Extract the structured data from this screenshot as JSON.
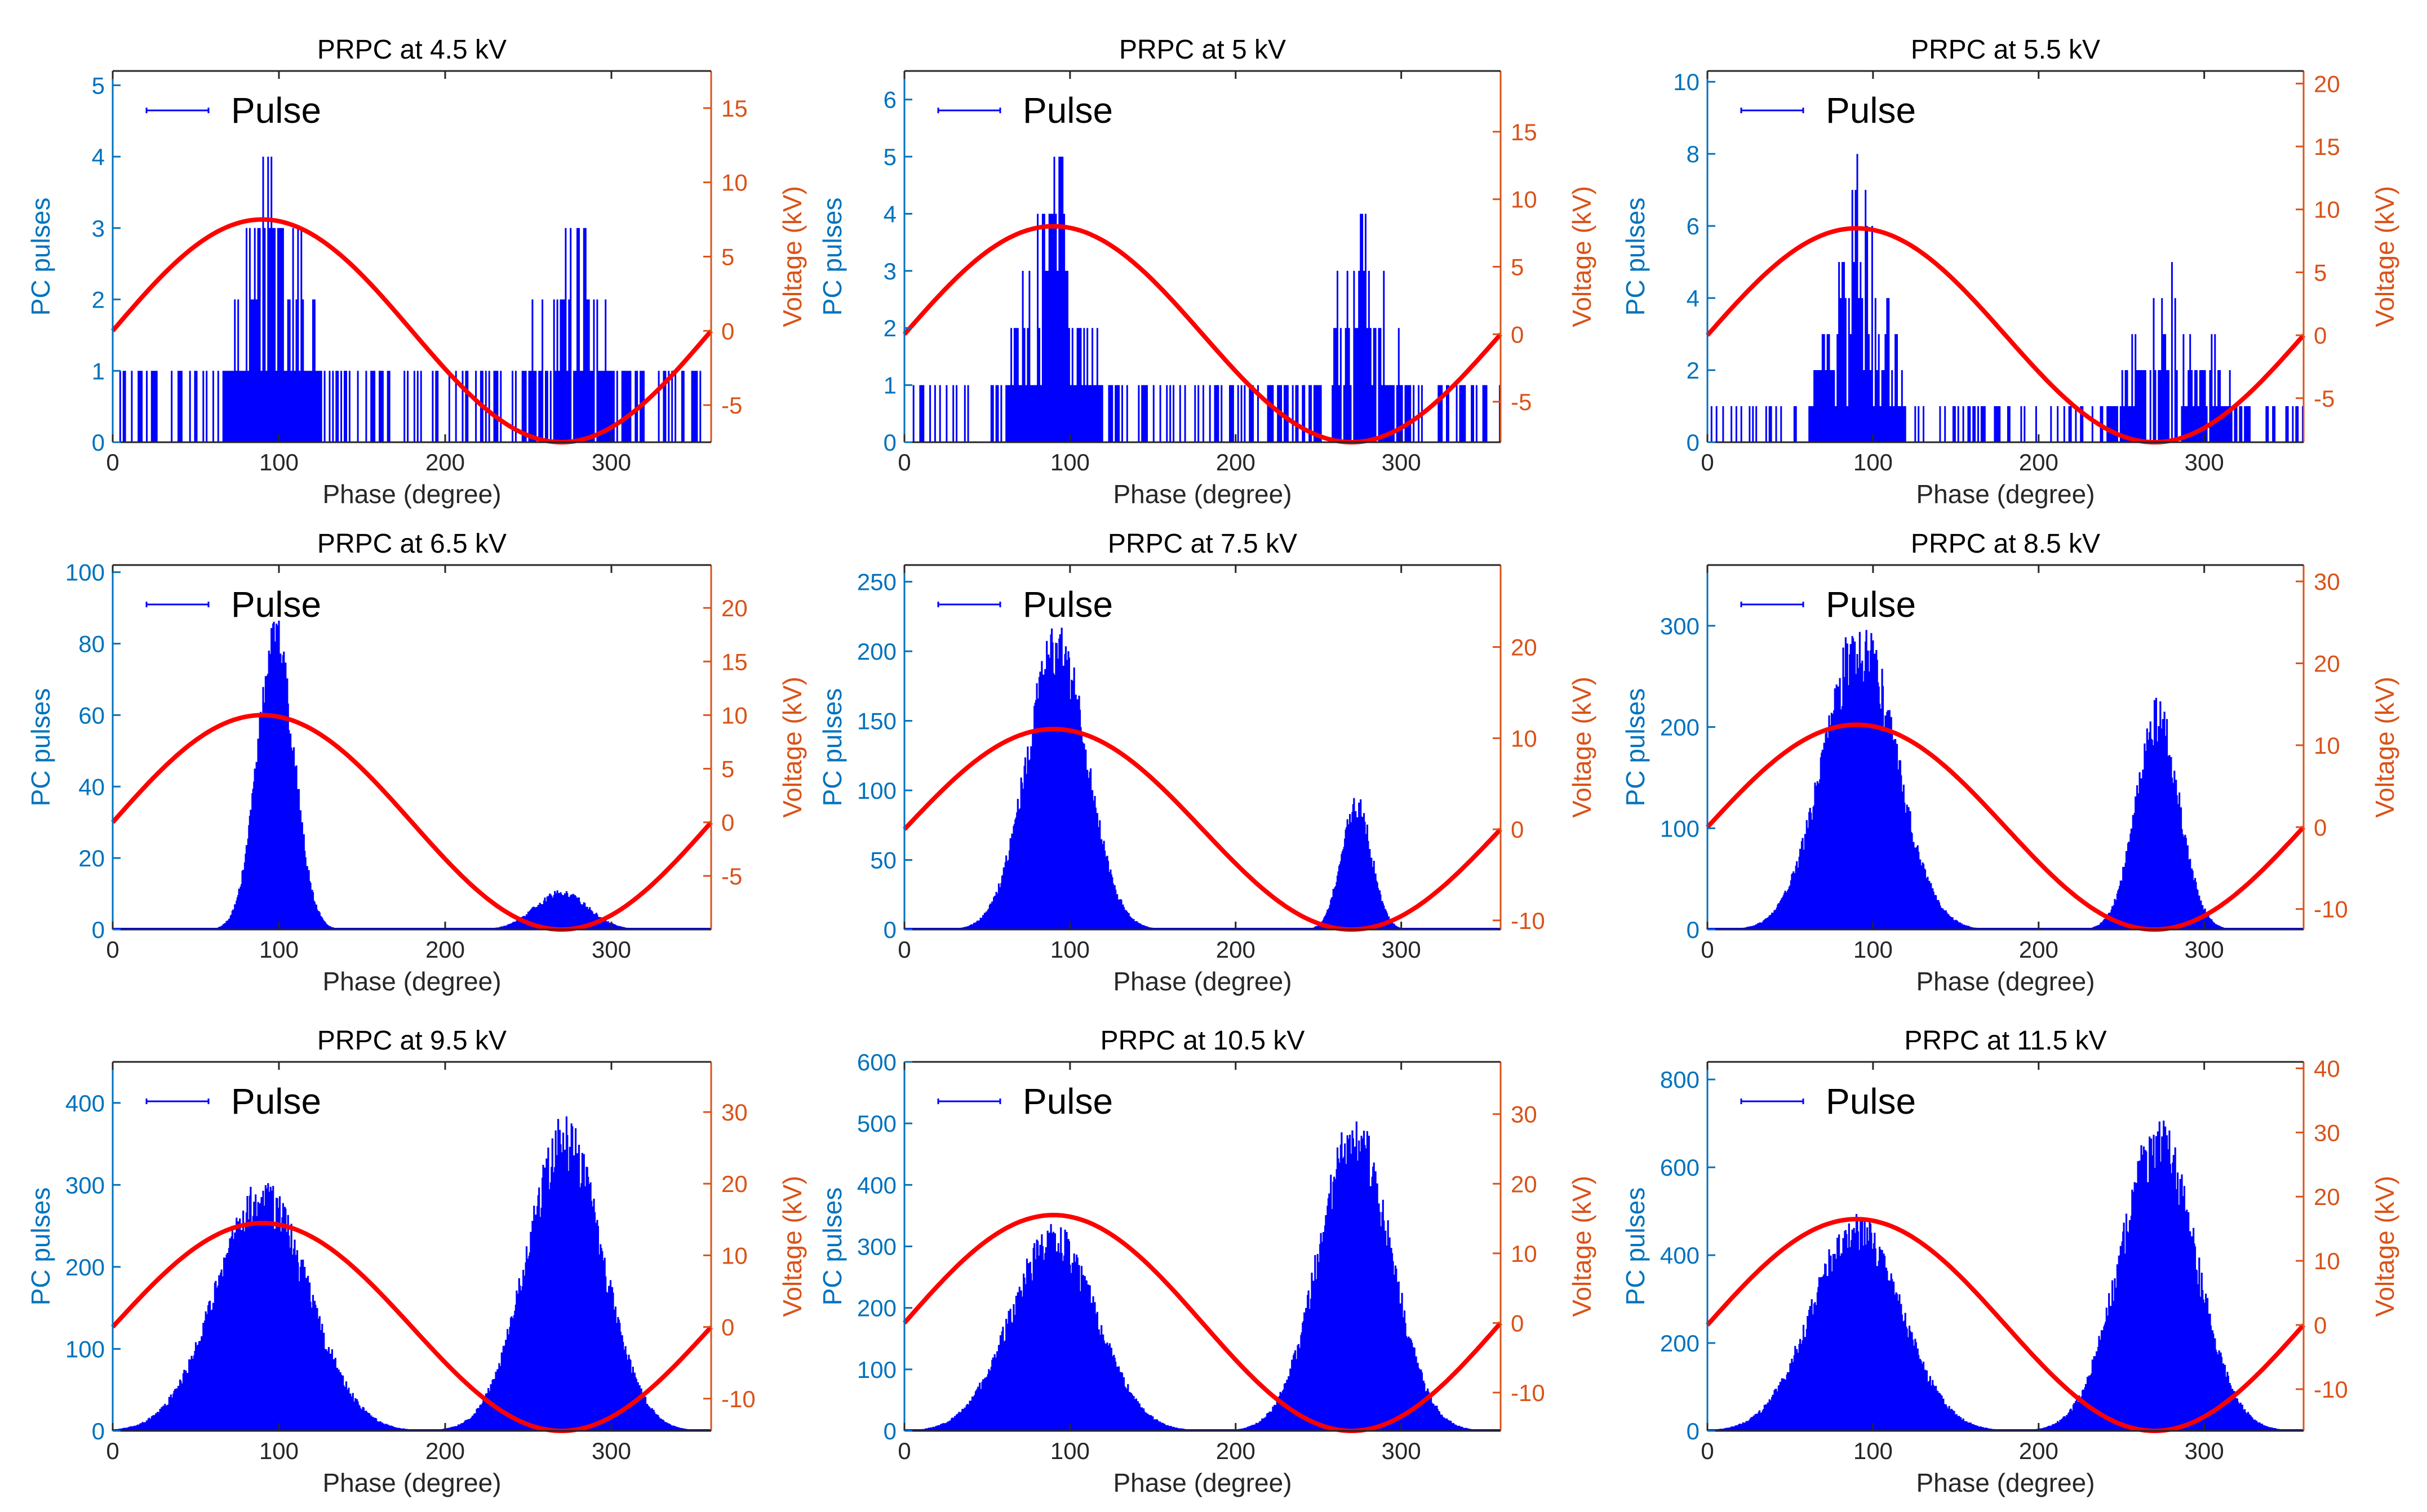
{
  "figure_caption": "",
  "colors": {
    "pulse": "#0000FF",
    "voltage": "#FF0000",
    "left_axis": "#0072BD",
    "right_axis": "#D95319",
    "frame": "#262626"
  },
  "chart_data": [
    {
      "type": "bar",
      "title": "PRPC at 4.5 kV",
      "xlabel": "Phase (degree)",
      "ylabel": "PC pulses",
      "ylabel_right": "Voltage (kV)",
      "legend": [
        "Pulse"
      ],
      "xlim": [
        0,
        360
      ],
      "ylim": [
        0,
        5.2
      ],
      "ylim_right": [
        -7.5,
        17.5
      ],
      "xticks": [
        0,
        100,
        200,
        300
      ],
      "yticks": [
        0,
        1,
        2,
        3,
        4,
        5
      ],
      "yticks_right": [
        -5,
        0,
        5,
        10,
        15
      ],
      "voltage_amplitude_kv": 7.5,
      "distribution": {
        "kind": "sparse",
        "peak_phase_1": 95,
        "peak_count_1": 4,
        "peak_phase_2": 280,
        "peak_count_2": 3
      },
      "series": [
        {
          "name": "Pulse",
          "peak_values": {
            "near_90_deg": 4,
            "near_270_deg": 3
          }
        },
        {
          "name": "Voltage",
          "function": "7.5 * sin(phase)"
        }
      ]
    },
    {
      "type": "bar",
      "title": "PRPC at 5 kV",
      "xlabel": "Phase (degree)",
      "ylabel": "PC pulses",
      "ylabel_right": "Voltage (kV)",
      "legend": [
        "Pulse"
      ],
      "xlim": [
        0,
        360
      ],
      "ylim": [
        0,
        6.5
      ],
      "ylim_right": [
        -8,
        19.5
      ],
      "xticks": [
        0,
        100,
        200,
        300
      ],
      "yticks": [
        0,
        1,
        2,
        3,
        4,
        5,
        6
      ],
      "yticks_right": [
        -5,
        0,
        5,
        10,
        15
      ],
      "voltage_amplitude_kv": 8,
      "distribution": {
        "kind": "sparse",
        "peak_phase_1": 90,
        "peak_count_1": 5,
        "peak_phase_2": 275,
        "peak_count_2": 4
      },
      "series": [
        {
          "name": "Pulse",
          "peak_values": {
            "near_90_deg": 5,
            "near_270_deg": 4
          }
        },
        {
          "name": "Voltage",
          "function": "8 * sin(phase)"
        }
      ]
    },
    {
      "type": "bar",
      "title": "PRPC at 5.5 kV",
      "xlabel": "Phase (degree)",
      "ylabel": "PC pulses",
      "ylabel_right": "Voltage (kV)",
      "legend": [
        "Pulse"
      ],
      "xlim": [
        0,
        360
      ],
      "ylim": [
        0,
        10.3
      ],
      "ylim_right": [
        -8.5,
        21
      ],
      "xticks": [
        0,
        100,
        200,
        300
      ],
      "yticks": [
        0,
        2,
        4,
        6,
        8,
        10
      ],
      "yticks_right": [
        -5,
        0,
        5,
        10,
        15,
        20
      ],
      "voltage_amplitude_kv": 8.5,
      "distribution": {
        "kind": "sparse",
        "peak_phase_1": 90,
        "peak_count_1": 8,
        "peak_phase_2": 280,
        "peak_count_2": 5
      },
      "series": [
        {
          "name": "Pulse",
          "peak_values": {
            "near_90_deg": 8,
            "near_270_deg": 5
          }
        },
        {
          "name": "Voltage",
          "function": "8.5 * sin(phase)"
        }
      ]
    },
    {
      "type": "bar",
      "title": "PRPC at 6.5 kV",
      "xlabel": "Phase (degree)",
      "ylabel": "PC pulses",
      "ylabel_right": "Voltage (kV)",
      "legend": [
        "Pulse"
      ],
      "xlim": [
        0,
        360
      ],
      "ylim": [
        0,
        102
      ],
      "ylim_right": [
        -10,
        24
      ],
      "xticks": [
        0,
        100,
        200,
        300
      ],
      "yticks": [
        0,
        20,
        40,
        60,
        80,
        100
      ],
      "yticks_right": [
        -5,
        0,
        5,
        10,
        15,
        20
      ],
      "voltage_amplitude_kv": 10,
      "distribution": {
        "kind": "dense",
        "peak_phase_1": 98,
        "peak_count_1": 79,
        "width_1": 11,
        "peak_phase_2": 270,
        "peak_count_2": 10,
        "width_2": 16
      },
      "series": [
        {
          "name": "Pulse",
          "peak_values": {
            "near_90_deg": 79,
            "near_270_deg": 10
          }
        },
        {
          "name": "Voltage",
          "function": "10 * sin(phase)"
        }
      ]
    },
    {
      "type": "bar",
      "title": "PRPC at 7.5 kV",
      "xlabel": "Phase (degree)",
      "ylabel": "PC pulses",
      "ylabel_right": "Voltage (kV)",
      "legend": [
        "Pulse"
      ],
      "xlim": [
        0,
        360
      ],
      "ylim": [
        0,
        262
      ],
      "ylim_right": [
        -11,
        29
      ],
      "xticks": [
        0,
        100,
        200,
        300
      ],
      "yticks": [
        0,
        50,
        100,
        150,
        200,
        250
      ],
      "yticks_right": [
        -10,
        0,
        10,
        20
      ],
      "voltage_amplitude_kv": 11,
      "distribution": {
        "kind": "dense",
        "peak_phase_1": 92,
        "peak_count_1": 200,
        "width_1": 18,
        "peak_phase_2": 273,
        "peak_count_2": 88,
        "width_2": 9
      },
      "series": [
        {
          "name": "Pulse",
          "peak_values": {
            "near_90_deg": 200,
            "near_270_deg": 88
          }
        },
        {
          "name": "Voltage",
          "function": "11 * sin(phase)"
        }
      ]
    },
    {
      "type": "bar",
      "title": "PRPC at 8.5 kV",
      "xlabel": "Phase (degree)",
      "ylabel": "PC pulses",
      "ylabel_right": "Voltage (kV)",
      "legend": [
        "Pulse"
      ],
      "xlim": [
        0,
        360
      ],
      "ylim": [
        0,
        360
      ],
      "ylim_right": [
        -12.5,
        32
      ],
      "xticks": [
        0,
        100,
        200,
        300
      ],
      "yticks": [
        0,
        100,
        200,
        300
      ],
      "yticks_right": [
        -10,
        0,
        10,
        20,
        30
      ],
      "voltage_amplitude_kv": 12.5,
      "distribution": {
        "kind": "dense",
        "peak_phase_1": 92,
        "peak_count_1": 278,
        "width_1": 22,
        "peak_phase_2": 272,
        "peak_count_2": 205,
        "width_2": 13
      },
      "series": [
        {
          "name": "Pulse",
          "peak_values": {
            "near_90_deg": 278,
            "near_270_deg": 205
          }
        },
        {
          "name": "Voltage",
          "function": "12.5 * sin(phase)"
        }
      ]
    },
    {
      "type": "bar",
      "title": "PRPC at 9.5 kV",
      "xlabel": "Phase (degree)",
      "ylabel": "PC pulses",
      "ylabel_right": "Voltage (kV)",
      "legend": [
        "Pulse"
      ],
      "xlim": [
        0,
        360
      ],
      "ylim": [
        0,
        450
      ],
      "ylim_right": [
        -14.5,
        37
      ],
      "xticks": [
        0,
        100,
        200,
        300
      ],
      "yticks": [
        0,
        100,
        200,
        300,
        400
      ],
      "yticks_right": [
        -10,
        0,
        10,
        20,
        30
      ],
      "voltage_amplitude_kv": 14.5,
      "distribution": {
        "kind": "dense",
        "peak_phase_1": 90,
        "peak_count_1": 275,
        "width_1": 28,
        "peak_phase_2": 272,
        "peak_count_2": 345,
        "width_2": 23
      },
      "series": [
        {
          "name": "Pulse",
          "peak_values": {
            "near_90_deg": 275,
            "near_270_deg": 345
          }
        },
        {
          "name": "Voltage",
          "function": "14.5 * sin(phase)"
        }
      ]
    },
    {
      "type": "bar",
      "title": "PRPC at 10.5 kV",
      "xlabel": "Phase (degree)",
      "ylabel": "PC pulses",
      "ylabel_right": "Voltage (kV)",
      "legend": [
        "Pulse"
      ],
      "xlim": [
        0,
        360
      ],
      "ylim": [
        0,
        600
      ],
      "ylim_right": [
        -15.5,
        37.5
      ],
      "xticks": [
        0,
        100,
        200,
        300
      ],
      "yticks": [
        0,
        100,
        200,
        300,
        400,
        500,
        600
      ],
      "yticks_right": [
        -10,
        0,
        10,
        20,
        30
      ],
      "voltage_amplitude_kv": 15.5,
      "distribution": {
        "kind": "dense",
        "peak_phase_1": 90,
        "peak_count_1": 305,
        "width_1": 26,
        "peak_phase_2": 272,
        "peak_count_2": 465,
        "width_2": 22
      },
      "series": [
        {
          "name": "Pulse",
          "peak_values": {
            "near_90_deg": 305,
            "near_270_deg": 465
          }
        },
        {
          "name": "Voltage",
          "function": "15.5 * sin(phase)"
        }
      ]
    },
    {
      "type": "bar",
      "title": "PRPC at 11.5 kV",
      "xlabel": "Phase (degree)",
      "ylabel": "PC pulses",
      "ylabel_right": "Voltage (kV)",
      "legend": [
        "Pulse"
      ],
      "xlim": [
        0,
        360
      ],
      "ylim": [
        0,
        840
      ],
      "ylim_right": [
        -16.5,
        41
      ],
      "xticks": [
        0,
        100,
        200,
        300
      ],
      "yticks": [
        0,
        200,
        400,
        600,
        800
      ],
      "yticks_right": [
        -10,
        0,
        10,
        20,
        30,
        40
      ],
      "voltage_amplitude_kv": 16.5,
      "distribution": {
        "kind": "dense",
        "peak_phase_1": 90,
        "peak_count_1": 445,
        "width_1": 27,
        "peak_phase_2": 272,
        "peak_count_2": 640,
        "width_2": 23
      },
      "series": [
        {
          "name": "Pulse",
          "peak_values": {
            "near_90_deg": 445,
            "near_270_deg": 640
          }
        },
        {
          "name": "Voltage",
          "function": "16.5 * sin(phase)"
        }
      ]
    }
  ]
}
